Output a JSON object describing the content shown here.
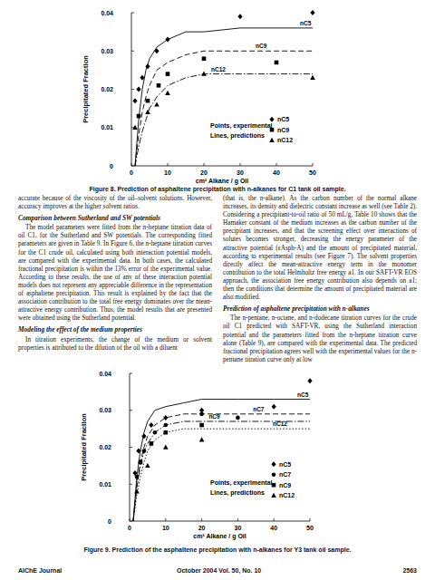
{
  "chart_data": [
    {
      "type": "scatter",
      "x_label": "cm³ Alkane / g Oil",
      "y_label": "Precipitated Fraction",
      "xlim": [
        0,
        50
      ],
      "ylim": [
        0,
        0.04
      ],
      "xticks": [
        0,
        10,
        20,
        30,
        40,
        50
      ],
      "yticks": [
        0,
        0.01,
        0.02,
        0.03,
        0.04
      ],
      "legend": "lower right",
      "annotations": [
        "Points, experimental",
        "Lines, predictions"
      ],
      "series": [
        {
          "name": "nC5",
          "type": "scatter",
          "marker": "diamond",
          "color": "#000000",
          "x": [
            1,
            2,
            3,
            4.5,
            7,
            10,
            30,
            50
          ],
          "values": [
            0.017,
            0.02,
            0.023,
            0.026,
            0.03,
            0.033,
            0.039,
            0.04
          ]
        },
        {
          "name": "nC9",
          "type": "scatter",
          "marker": "square",
          "color": "#000000",
          "x": [
            2,
            4.5,
            7.5,
            10,
            20,
            40
          ],
          "values": [
            0.013,
            0.017,
            0.021,
            0.024,
            0.028,
            0.027
          ]
        },
        {
          "name": "nC12",
          "type": "scatter",
          "marker": "triangle",
          "color": "#000000",
          "x": [
            1,
            4.5,
            7,
            10,
            20,
            50
          ],
          "values": [
            0.01,
            0.014,
            0.016,
            0.019,
            0.024,
            0.023
          ]
        },
        {
          "name": "nC5",
          "type": "line",
          "line_style": "solid",
          "color": "#000000",
          "x": [
            1,
            2,
            3,
            4,
            5,
            7,
            10,
            15,
            20,
            30,
            40,
            50
          ],
          "values": [
            0,
            0.012,
            0.02,
            0.025,
            0.028,
            0.031,
            0.033,
            0.035,
            0.035,
            0.036,
            0.036,
            0.036
          ]
        },
        {
          "name": "nC9",
          "type": "line",
          "line_style": "dashed",
          "color": "#000000",
          "x": [
            1,
            2,
            3,
            4,
            5,
            7,
            10,
            15,
            20,
            30,
            40,
            50
          ],
          "values": [
            0,
            0.008,
            0.014,
            0.018,
            0.021,
            0.025,
            0.027,
            0.029,
            0.03,
            0.03,
            0.03,
            0.03
          ]
        },
        {
          "name": "nC12",
          "type": "line",
          "line_style": "dashdot",
          "color": "#000000",
          "x": [
            1,
            2,
            3,
            4,
            5,
            7,
            10,
            15,
            20,
            30,
            40,
            50
          ],
          "values": [
            0,
            0.005,
            0.009,
            0.012,
            0.015,
            0.018,
            0.021,
            0.023,
            0.024,
            0.024,
            0.024,
            0.024
          ]
        }
      ]
    },
    {
      "type": "scatter",
      "x_label": "cm³ Alkane / g Oil",
      "y_label": "Precipitated Fraction",
      "xlim": [
        0,
        50
      ],
      "ylim": [
        0,
        0.04
      ],
      "xticks": [
        0,
        10,
        20,
        30,
        40,
        50
      ],
      "yticks": [
        0,
        0.01,
        0.02,
        0.03,
        0.04
      ],
      "legend": "lower right",
      "annotations": [
        "Points, experimental",
        "Lines, predictions"
      ],
      "series": [
        {
          "name": "nC5",
          "type": "scatter",
          "marker": "diamond",
          "color": "#000000",
          "x": [
            1.5,
            2.5,
            4,
            6,
            10,
            20,
            40,
            50
          ],
          "values": [
            0.013,
            0.019,
            0.023,
            0.026,
            0.028,
            0.03,
            0.031,
            0.038
          ]
        },
        {
          "name": "nC7",
          "type": "scatter",
          "marker": "circle",
          "color": "#000000",
          "x": [
            2,
            4,
            7,
            10,
            20,
            30
          ],
          "values": [
            0.012,
            0.019,
            0.024,
            0.026,
            0.029,
            0.028
          ]
        },
        {
          "name": "nC9",
          "type": "scatter",
          "marker": "square",
          "color": "#000000",
          "x": [
            3,
            6,
            10,
            20
          ],
          "values": [
            0.016,
            0.021,
            0.024,
            0.026
          ]
        },
        {
          "name": "nC12",
          "type": "scatter",
          "marker": "triangle",
          "color": "#000000",
          "x": [
            2,
            5,
            10,
            20
          ],
          "values": [
            0.008,
            0.015,
            0.02,
            0.022
          ]
        },
        {
          "name": "nC5",
          "type": "line",
          "line_style": "solid",
          "color": "#000000",
          "x": [
            1,
            2,
            3,
            4,
            5,
            7,
            10,
            15,
            20,
            30,
            40,
            50
          ],
          "values": [
            0,
            0.012,
            0.019,
            0.024,
            0.027,
            0.03,
            0.031,
            0.032,
            0.033,
            0.033,
            0.033,
            0.033
          ]
        },
        {
          "name": "nC7",
          "type": "line",
          "line_style": "dashed",
          "color": "#000000",
          "x": [
            1,
            2,
            3,
            4,
            5,
            7,
            10,
            15,
            20,
            30,
            40,
            50
          ],
          "values": [
            0,
            0.01,
            0.016,
            0.02,
            0.023,
            0.026,
            0.028,
            0.029,
            0.029,
            0.029,
            0.029,
            0.029
          ]
        },
        {
          "name": "nC9",
          "type": "line",
          "line_style": "dashdot",
          "color": "#000000",
          "x": [
            1,
            2,
            3,
            4,
            5,
            7,
            10,
            15,
            20,
            30,
            40,
            50
          ],
          "values": [
            0,
            0.009,
            0.015,
            0.019,
            0.021,
            0.024,
            0.026,
            0.027,
            0.027,
            0.027,
            0.027,
            0.027
          ]
        },
        {
          "name": "nC12",
          "type": "line",
          "line_style": "dotted",
          "color": "#000000",
          "x": [
            1,
            2,
            3,
            4,
            5,
            7,
            10,
            15,
            20,
            30,
            40,
            50
          ],
          "values": [
            0,
            0.007,
            0.012,
            0.016,
            0.019,
            0.022,
            0.024,
            0.025,
            0.025,
            0.025,
            0.025,
            0.025
          ]
        }
      ]
    }
  ],
  "captions": [
    "Figure 8.  Prediction of asphaltene precipitation with n-alkanes for C1 tank oil sample.",
    "Figure 9.  Prediction of the asphaltene precipitation with n-alkanes for Y3 tank oil sample."
  ],
  "columns": [
    [
      {
        "text": "accurate because of the viscosity of the oil–solvent solutions. However, accuracy improves at the higher solvent ratios."
      },
      {
        "heading": "Comparison between Sutherland and SW potentials"
      },
      {
        "text": "The model parameters were fitted from the n-heptane titration data of oil C1, for the Sutherland and SW potentials. The corresponding fitted parameters are given in Table 9. In Figure 6, the n-heptane titration curves for the C1 crude oil, calculated using both interaction potential models, are compared with the experimental data. In both cases, the calculated fractional precipitation is within the 13% error of the experimental value. According to these results, the use of any of these interaction potential models does not represent any appreciable difference in the representation of asphaltene precipitation. This result is explained by the fact that the association contribution to the total free energy dominates over the mean-attractive energy contribution. Thus, the model results that are presented were obtained using the Sutherland potential."
      },
      {
        "heading": "Modeling the effect of the medium properties"
      },
      {
        "text": "In titration experiments, the change of the medium or solvent properties is attributed to the dilution of the oil with a diluent"
      }
    ],
    [
      {
        "text": "(that is, the n-alkane). As the carbon number of the normal alkane increases, its density and dielectric constant increase as well (see Table 2). Considering a precipitant-to-oil ratio of 50 mL/g, Table 10 shows that the Hamaker constant of the medium increases as the carbon number of the precipitant increases, and that the screening effect over interactions of solutes becomes stronger, decreasing the energy parameter of the attractive potential (εAsph-A) and the amount of precipitated material, according to experimental results (see Figure 7). The solvent properties directly affect the mean-attractive energy term in the monomer contribution to the total Helmholtz free energy a1. In our SAFT-VR EOS approach, the association free energy contribution also depends on a1; then the conditions that determine the amount of precipitated material are also modified."
      },
      {
        "heading": "Prediction of asphaltene precipitation with n-alkanes"
      },
      {
        "text": "The n-pentane, n-octane, and n-dodecane titration curves for the crude oil C1 predicted with SAFT-VR, using the Sutherland interaction potential and the parameters fitted from the n-heptane titration curve alone (Table 9), are compared with the experimental data. The predicted fractional precipitation agrees well with the experimental values for the n-pentane titration curve only at low"
      }
    ]
  ],
  "footer": {
    "journal": "AIChE Journal",
    "issue": "October 2004   Vol. 50, No. 10",
    "page": "2563"
  }
}
